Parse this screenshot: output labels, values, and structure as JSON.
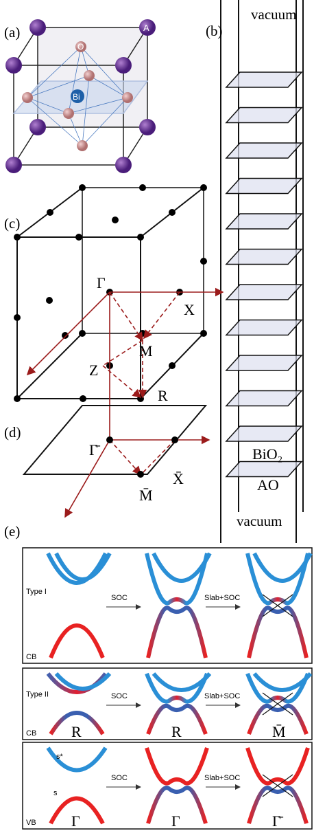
{
  "panel_a": {
    "label": "(a)",
    "atom_a": "A",
    "atom_o": "O",
    "atom_bi": "Bi"
  },
  "panel_b": {
    "label": "(b)",
    "top": "vacuum",
    "layer_1": "BiO₂",
    "layer_2": "AO",
    "bottom": "vacuum"
  },
  "panel_c": {
    "label": "(c)",
    "points": [
      "Γ",
      "X",
      "M",
      "Z",
      "R"
    ]
  },
  "panel_d": {
    "label": "(d)",
    "points": [
      "Γ̄",
      "X̄",
      "M̄"
    ]
  },
  "panel_e": {
    "label": "(e)",
    "rows": [
      {
        "type": "Type I",
        "band": "CB",
        "step_1": "SOC",
        "step_2": "Slab+SOC"
      },
      {
        "type": "Type II",
        "band": "CB",
        "step_1": "SOC",
        "step_2": "Slab+SOC",
        "k_points": [
          "R",
          "R",
          "M̄"
        ]
      },
      {
        "type": "",
        "band": "VB",
        "step_1": "SOC",
        "step_2": "Slab+SOC",
        "k_points": [
          "Γ",
          "Γ",
          "Γ̄"
        ],
        "states": [
          "s*",
          "s"
        ]
      }
    ]
  }
}
